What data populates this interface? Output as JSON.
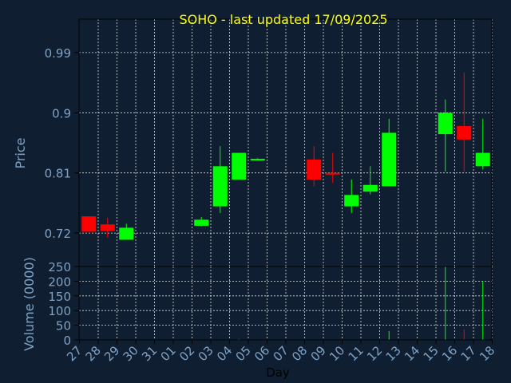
{
  "chart_data": {
    "type": "candlestick",
    "title": "SOHO - last updated 17/09/2025",
    "xlabel": "Day",
    "price_panel": {
      "ylabel": "Price",
      "yticks": [
        0.72,
        0.81,
        0.9,
        0.99
      ],
      "ylim": [
        0.67,
        1.04
      ],
      "grid": true
    },
    "volume_panel": {
      "ylabel": "Volume (0000)",
      "yticks": [
        0,
        50,
        100,
        150,
        200,
        250
      ],
      "ylim": [
        0,
        250
      ],
      "grid": true
    },
    "x_ticks": [
      "27",
      "28",
      "29",
      "30",
      "31",
      "01",
      "02",
      "03",
      "04",
      "05",
      "06",
      "07",
      "08",
      "09",
      "10",
      "11",
      "12",
      "13",
      "14",
      "15",
      "16",
      "17",
      "18"
    ],
    "candles": [
      {
        "day": "27",
        "open": 0.745,
        "high": 0.745,
        "low": 0.722,
        "close": 0.722,
        "volume": 0
      },
      {
        "day": "28",
        "open": 0.733,
        "high": 0.743,
        "low": 0.713,
        "close": 0.723,
        "volume": 0
      },
      {
        "day": "29",
        "open": 0.71,
        "high": 0.734,
        "low": 0.71,
        "close": 0.728,
        "volume": 0
      },
      {
        "day": "02",
        "open": 0.731,
        "high": 0.744,
        "low": 0.73,
        "close": 0.74,
        "volume": 0
      },
      {
        "day": "03",
        "open": 0.76,
        "high": 0.85,
        "low": 0.75,
        "close": 0.82,
        "volume": 0
      },
      {
        "day": "04",
        "open": 0.8,
        "high": 0.84,
        "low": 0.8,
        "close": 0.84,
        "volume": 3
      },
      {
        "day": "05",
        "open": 0.829,
        "high": 0.832,
        "low": 0.829,
        "close": 0.831,
        "volume": 0
      },
      {
        "day": "08",
        "open": 0.83,
        "high": 0.85,
        "low": 0.79,
        "close": 0.8,
        "volume": 0
      },
      {
        "day": "09",
        "open": 0.81,
        "high": 0.84,
        "low": 0.795,
        "close": 0.808,
        "volume": 0
      },
      {
        "day": "10",
        "open": 0.76,
        "high": 0.8,
        "low": 0.75,
        "close": 0.777,
        "volume": 0
      },
      {
        "day": "11",
        "open": 0.782,
        "high": 0.82,
        "low": 0.778,
        "close": 0.792,
        "volume": 0
      },
      {
        "day": "12",
        "open": 0.79,
        "high": 0.891,
        "low": 0.79,
        "close": 0.87,
        "volume": 30
      },
      {
        "day": "15",
        "open": 0.868,
        "high": 0.92,
        "low": 0.812,
        "close": 0.9,
        "volume": 250
      },
      {
        "day": "16",
        "open": 0.88,
        "high": 0.96,
        "low": 0.812,
        "close": 0.86,
        "volume": 36
      },
      {
        "day": "17",
        "open": 0.82,
        "high": 0.891,
        "low": 0.815,
        "close": 0.84,
        "volume": 200
      }
    ],
    "colors": {
      "up": "#00ff00",
      "down": "#ff0000",
      "title": "#ffff00",
      "axis_text": "#7fa2c5",
      "frame": "#000000",
      "grid": "#ffffff",
      "background": "#0f1f31"
    }
  }
}
